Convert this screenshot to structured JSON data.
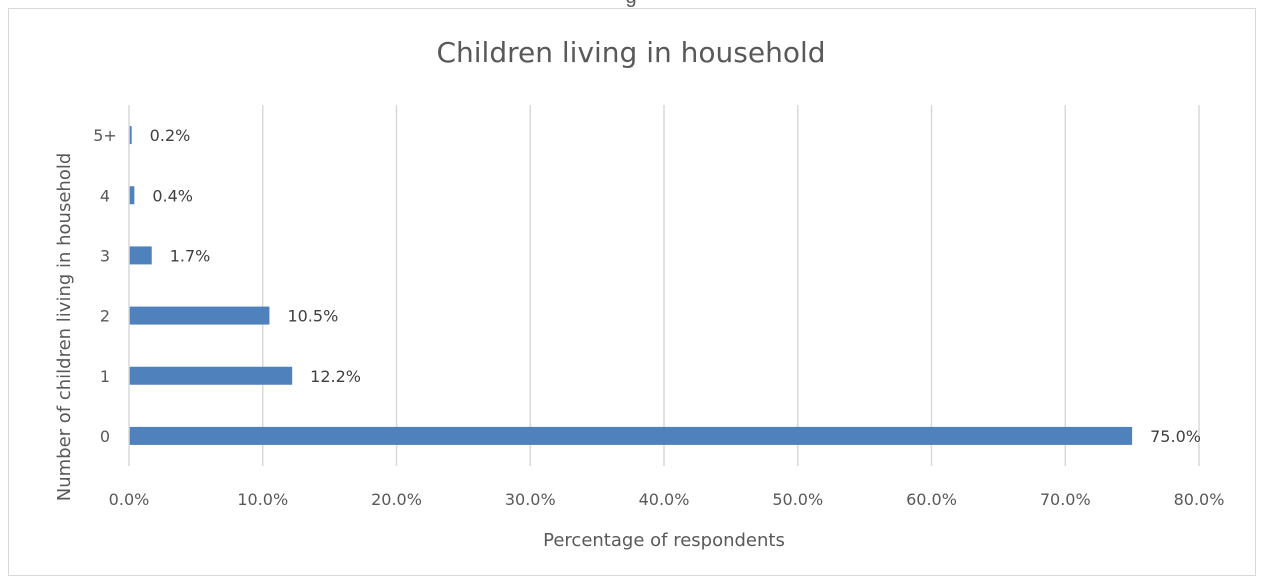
{
  "top_fragment": "g",
  "chart_data": {
    "type": "bar",
    "orientation": "horizontal",
    "title": "Children living in household",
    "xlabel": "Percentage of respondents",
    "ylabel": "Number of children living in household",
    "categories": [
      "5+",
      "4",
      "3",
      "2",
      "1",
      "0"
    ],
    "values": [
      0.2,
      0.4,
      1.7,
      10.5,
      12.2,
      75.0
    ],
    "data_labels": [
      "0.2%",
      "0.4%",
      "1.7%",
      "10.5%",
      "12.2%",
      "75.0%"
    ],
    "xlim": [
      0,
      80
    ],
    "x_ticks": [
      0,
      10,
      20,
      30,
      40,
      50,
      60,
      70,
      80
    ],
    "x_tick_labels": [
      "0.0%",
      "10.0%",
      "20.0%",
      "30.0%",
      "40.0%",
      "50.0%",
      "60.0%",
      "70.0%",
      "80.0%"
    ],
    "grid": true,
    "legend": "none",
    "bar_color": "#4f81bd",
    "grid_color": "#d9d9d9",
    "text_color": "#595959"
  }
}
